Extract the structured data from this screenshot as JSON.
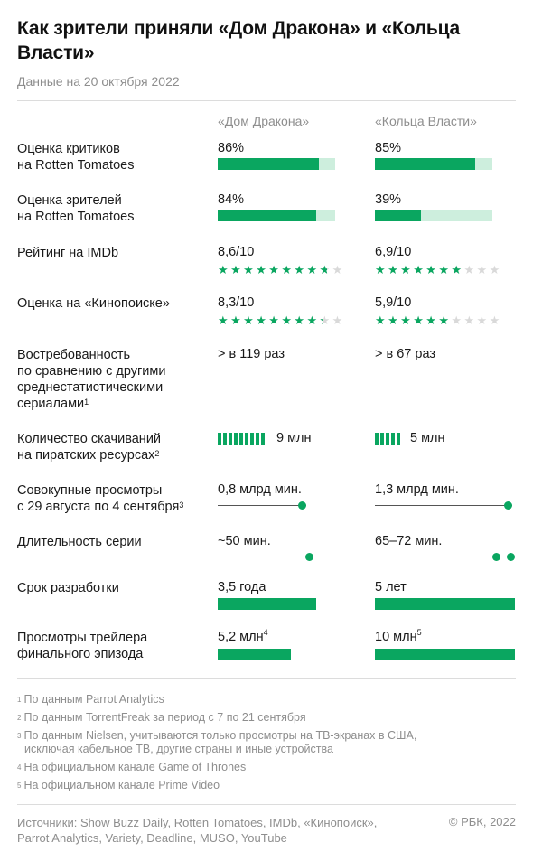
{
  "title": "Как зрители приняли «Дом Дракона» и «Кольца Власти»",
  "subtitle": "Данные на 20 октября 2022",
  "columns": [
    "«Дом Дракона»",
    "«Кольца Власти»"
  ],
  "rows": {
    "critics": {
      "label_line1": "Оценка критиков",
      "label_line2": "на Rotten Tomatoes",
      "values": [
        "86%",
        "85%"
      ]
    },
    "audience": {
      "label_line1": "Оценка зрителей",
      "label_line2": "на Rotten Tomatoes",
      "values": [
        "84%",
        "39%"
      ]
    },
    "imdb": {
      "label": "Рейтинг на IMDb",
      "values": [
        "8,6/10",
        "6,9/10"
      ]
    },
    "kinopoisk": {
      "label": "Оценка на «Кинопоиске»",
      "values": [
        "8,3/10",
        "5,9/10"
      ]
    },
    "demand": {
      "label_lines": [
        "Востребованность",
        "по сравнению с другими",
        "среднестатистическими",
        "сериалами"
      ],
      "footnote": "1",
      "values": [
        "> в 119 раз",
        "> в 67 раз"
      ]
    },
    "downloads": {
      "label_line1": "Количество скачиваний",
      "label_line2": "на пиратских ресурсах",
      "footnote": "2",
      "values": [
        "9 млн",
        "5 млн"
      ]
    },
    "views": {
      "label_line1": "Совокупные просмотры",
      "label_line2": "с 29 августа по 4 сентября",
      "footnote": "3",
      "values": [
        "0,8 млрд мин.",
        "1,3 млрд мин."
      ]
    },
    "duration": {
      "label": "Длительность серии",
      "values": [
        "~50 мин.",
        "65–72 мин."
      ]
    },
    "development": {
      "label": "Срок разработки",
      "values": [
        "3,5 года",
        "5 лет"
      ]
    },
    "trailer": {
      "label_line1": "Просмотры трейлера",
      "label_line2": "финального эпизода",
      "values": [
        "5,2 млн",
        "10 млн"
      ],
      "footnotes": [
        "4",
        "5"
      ]
    }
  },
  "chart_data": {
    "type": "table",
    "series": [
      {
        "name": "«Дом Дракона»",
        "critics_pct": 86,
        "audience_pct": 84,
        "imdb": 8.6,
        "kinopoisk": 8.3,
        "demand_times": 119,
        "downloads_mln": 9,
        "views_bln_min": 0.8,
        "duration_min": [
          50,
          50
        ],
        "development_years": 3.5,
        "trailer_views_mln": 5.2
      },
      {
        "name": "«Кольца Власти»",
        "critics_pct": 85,
        "audience_pct": 39,
        "imdb": 6.9,
        "kinopoisk": 5.9,
        "demand_times": 67,
        "downloads_mln": 5,
        "views_bln_min": 1.3,
        "duration_min": [
          65,
          72
        ],
        "development_years": 5,
        "trailer_views_mln": 10
      }
    ]
  },
  "footnotes": [
    {
      "num": "1",
      "text": "По данным Parrot Analytics"
    },
    {
      "num": "2",
      "text": "По данным TorrentFreak за период с 7 по 21 сентября"
    },
    {
      "num": "3",
      "text_line1": "По данным Nielsen, учитываются только просмотры на ТВ-экранах в США,",
      "text_line2": "исключая кабельное ТВ, другие страны и иные устройства"
    },
    {
      "num": "4",
      "text": "На официальном канале Game of Thrones"
    },
    {
      "num": "5",
      "text": "На официальном канале Prime Video"
    }
  ],
  "source_line1": "Источники: Show Buzz Daily, Rotten Tomatoes, IMDb, «Кинопоиск»,",
  "source_line2": "Parrot Analytics, Variety, Deadline, MUSO, YouTube",
  "copyright": "© РБК, 2022",
  "colors": {
    "accent": "#0aa660",
    "accent_light": "#cdeedd",
    "star_off": "#d9d9d9",
    "muted": "#8e8e8e"
  }
}
